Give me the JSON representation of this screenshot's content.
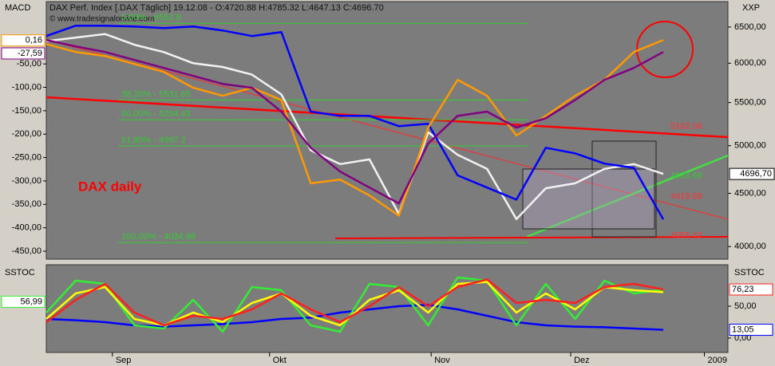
{
  "chart_data": [
    {
      "type": "line",
      "title": "DAX Perf. Index [.DAX Täglich] 19.12.08 - O:4720.88 H:4785.32 L:4647.13 C:4696.70",
      "subtitle": "© www.tradesignalonline.com",
      "annotation": "DAX daily",
      "y_label": "XXP",
      "y2_label": "MACD",
      "log_scale": true,
      "xlim": [
        0,
        92.8
      ],
      "x": [
        0,
        4,
        8,
        12,
        16,
        20,
        24,
        28,
        32,
        36,
        40,
        44,
        48,
        52,
        56,
        60,
        64,
        68,
        72,
        76,
        80,
        84
      ],
      "ylim": [
        3890,
        6840
      ],
      "yticks": [
        {
          "value": 4000,
          "label": "4000,00"
        },
        {
          "value": 4500,
          "label": "4500,00"
        },
        {
          "value": 5000,
          "label": "5000,00"
        },
        {
          "value": 5500,
          "label": "5500,00"
        },
        {
          "value": 6000,
          "label": "6000,00"
        },
        {
          "value": 6500,
          "label": "6500,00"
        }
      ],
      "y2lim": [
        -467,
        78
      ],
      "y2ticks": [
        {
          "value": -50,
          "label": "-50,00"
        },
        {
          "value": -100,
          "label": "-100,00"
        },
        {
          "value": -150,
          "label": "-150,00"
        },
        {
          "value": -200,
          "label": "-200,00"
        },
        {
          "value": -250,
          "label": "-250,00"
        },
        {
          "value": -300,
          "label": "-300,00"
        },
        {
          "value": -350,
          "label": "-350,00"
        },
        {
          "value": -400,
          "label": "-400,00"
        },
        {
          "value": -450,
          "label": "-450,00"
        }
      ],
      "series": [
        {
          "color": "#f2f2f2",
          "values": [
            6300,
            6350,
            6400,
            6250,
            6150,
            6000,
            5950,
            5850,
            5600,
            4950,
            4800,
            4850,
            4300,
            5150,
            4900,
            4750,
            4250,
            4550,
            4600,
            4750,
            4800,
            4696.7
          ]
        },
        {
          "color": "#0000ff",
          "axis": "y2",
          "values": [
            9.5,
            31.7,
            31.7,
            30,
            26.6,
            30,
            21.4,
            9.5,
            18,
            -152,
            -161,
            -161,
            -183,
            -178,
            -288,
            -314,
            -340,
            -229,
            -241,
            -263,
            -272,
            -382
          ]
        },
        {
          "color": "#ff9900",
          "axis": "y2",
          "values": [
            -7.5,
            -24.5,
            -33,
            -50,
            -67,
            -101,
            -118,
            -101,
            -127,
            -305,
            -297,
            -331,
            -374,
            -186,
            -84,
            -118,
            -203,
            -161,
            -118,
            -84,
            -24.5,
            1
          ]
        },
        {
          "color": "#800080",
          "axis": "y2",
          "values": [
            1,
            -12.6,
            -24.5,
            -41.5,
            -58.6,
            -75.6,
            -92.6,
            -101,
            -152,
            -229,
            -280,
            -314,
            -348,
            -220,
            -161,
            -152,
            -186,
            -166,
            -127,
            -84,
            -58.6,
            -24.5
          ]
        }
      ],
      "fib_color": "#33cc33",
      "fib_levels": [
        6553.9,
        5531.65,
        5294.43,
        4997.2,
        4034.96
      ],
      "fib_labels": [
        "0,00% - 6553.9",
        "38,20% - 5531.65",
        "50,00% - 5294.43",
        "61,80% - 4997.2",
        "100,00% - 4034.96"
      ],
      "price_labels": [
        {
          "value": 5162.06,
          "label": "5162.06",
          "color": "#ff3333"
        },
        {
          "value": 4628.69,
          "label": "4628.69",
          "color": "#33cc33"
        },
        {
          "value": 4419.89,
          "label": "4419.89",
          "color": "#ff3333"
        },
        {
          "value": 4055.42,
          "label": "4055.42",
          "color": "#ff3333"
        }
      ],
      "last_label": {
        "value": 4696.7,
        "label": "4696,70"
      },
      "y2_boxes": [
        {
          "value": 0.16,
          "label": "0,16",
          "color": "#ff9900"
        },
        {
          "value": -27.59,
          "label": "-27,59",
          "color": "#800080"
        }
      ]
    },
    {
      "type": "line",
      "y_label": "SSTOC",
      "y2_label": "SSTOC",
      "xlim": [
        0,
        92.8
      ],
      "x": [
        0,
        4,
        8,
        12,
        16,
        20,
        24,
        28,
        32,
        36,
        40,
        44,
        48,
        52,
        56,
        60,
        64,
        68,
        72,
        76,
        80,
        84
      ],
      "xticks": [
        {
          "value": 9,
          "label": "Sep"
        },
        {
          "value": 30.4,
          "label": "Okt"
        },
        {
          "value": 52.4,
          "label": "Nov"
        },
        {
          "value": 71.4,
          "label": "Dez"
        },
        {
          "value": 89.6,
          "label": "2009"
        }
      ],
      "ylim": [
        -22.5,
        115
      ],
      "yticks": [
        {
          "value": 50,
          "label": "50,00"
        },
        {
          "value": 0,
          "label": "0,00"
        }
      ],
      "series": [
        {
          "color": "#0000ff",
          "values": [
            30,
            28,
            25,
            20,
            18,
            20,
            22,
            25,
            30,
            32,
            40,
            45,
            50,
            52,
            45,
            35,
            25,
            20,
            18,
            17,
            15,
            13.05
          ]
        },
        {
          "color": "#33ee33",
          "values": [
            40,
            90,
            85,
            20,
            15,
            60,
            10,
            80,
            75,
            20,
            10,
            85,
            80,
            20,
            95,
            90,
            20,
            85,
            30,
            90,
            70,
            76
          ]
        },
        {
          "color": "#ffff00",
          "values": [
            30,
            70,
            80,
            30,
            20,
            40,
            25,
            55,
            70,
            35,
            20,
            60,
            75,
            40,
            85,
            88,
            40,
            70,
            45,
            80,
            75,
            72
          ]
        },
        {
          "color": "#ff2020",
          "values": [
            25,
            60,
            85,
            40,
            20,
            35,
            30,
            45,
            70,
            45,
            25,
            50,
            80,
            50,
            80,
            92,
            55,
            60,
            55,
            80,
            85,
            76.23
          ]
        }
      ],
      "right_boxes": [
        {
          "value": 76.23,
          "label": "76,23",
          "color": "#ff2020"
        },
        {
          "value": 13.05,
          "label": "13,05",
          "color": "#0000ff"
        }
      ],
      "left_boxes": [
        {
          "value": 56.99,
          "label": "56,99",
          "color": "#33ee33"
        }
      ]
    }
  ]
}
